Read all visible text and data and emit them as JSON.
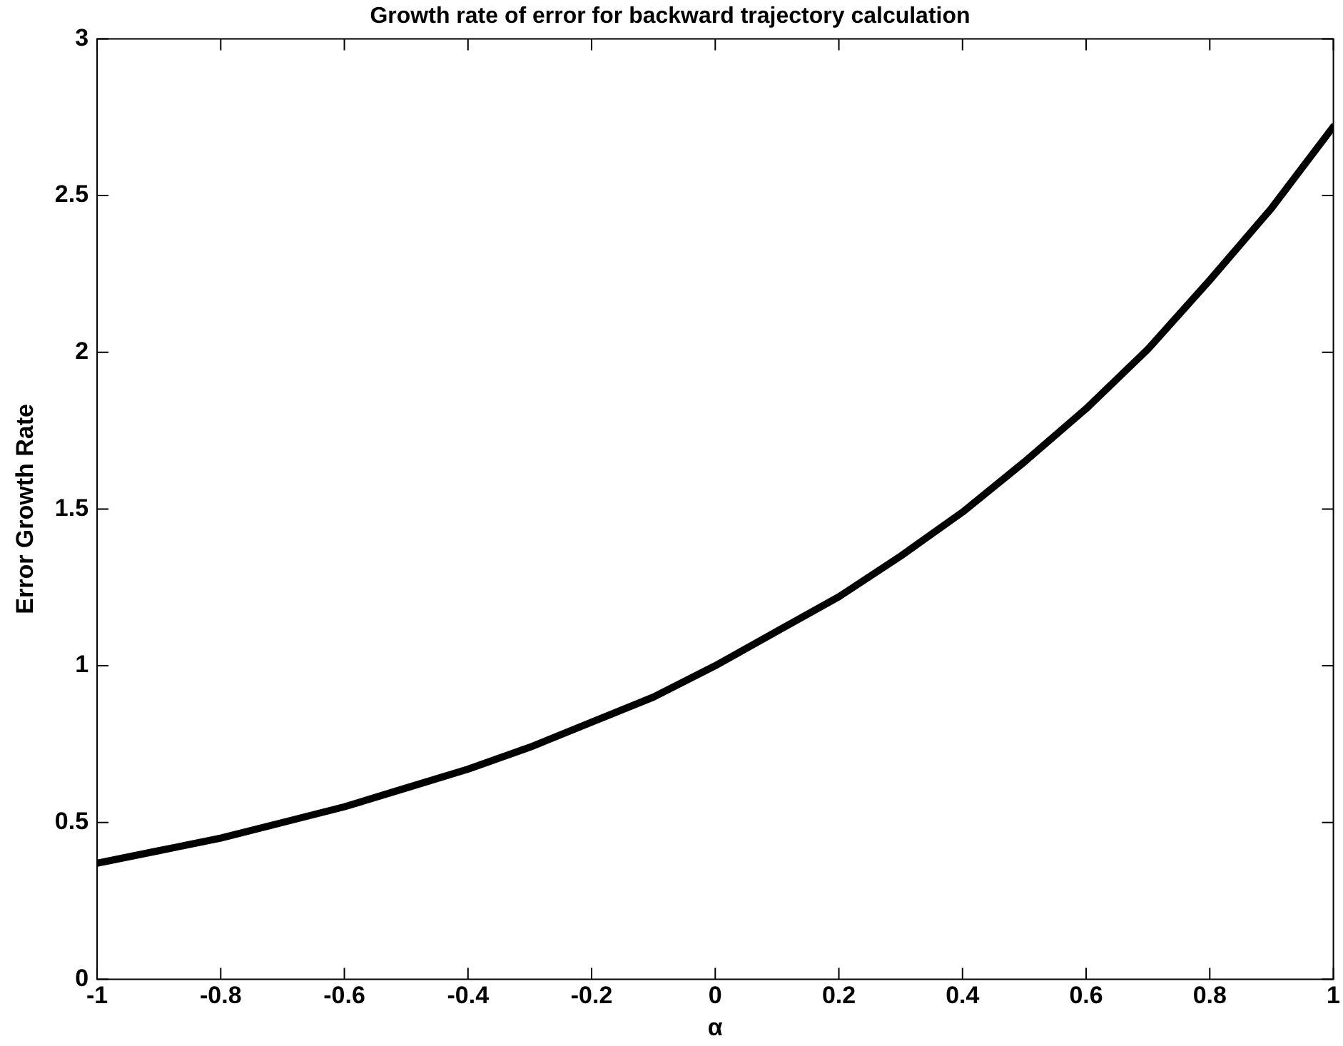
{
  "chart_data": {
    "type": "line",
    "title": "Growth rate of error for backward trajectory calculation",
    "xlabel": "α",
    "ylabel": "Error Growth Rate",
    "x": [
      -1,
      -0.9,
      -0.8,
      -0.7,
      -0.6,
      -0.5,
      -0.4,
      -0.3,
      -0.2,
      -0.1,
      0,
      0.1,
      0.2,
      0.3,
      0.4,
      0.5,
      0.6,
      0.7,
      0.8,
      0.9,
      1
    ],
    "series": [
      {
        "color": "#000000",
        "values": [
          0.37,
          0.41,
          0.45,
          0.5,
          0.55,
          0.61,
          0.67,
          0.74,
          0.82,
          0.9,
          1.0,
          1.11,
          1.22,
          1.35,
          1.49,
          1.65,
          1.82,
          2.01,
          2.23,
          2.46,
          2.72
        ]
      }
    ],
    "xlim": [
      -1,
      1
    ],
    "xticks": [
      -1,
      -0.8,
      -0.6,
      -0.4,
      -0.2,
      0,
      0.2,
      0.4,
      0.6,
      0.8,
      1
    ],
    "ylim": [
      0,
      3
    ],
    "yticks": [
      0,
      0.5,
      1,
      1.5,
      2,
      2.5,
      3
    ],
    "grid": false,
    "legend": false,
    "marker": "none",
    "line_style": "solid"
  }
}
